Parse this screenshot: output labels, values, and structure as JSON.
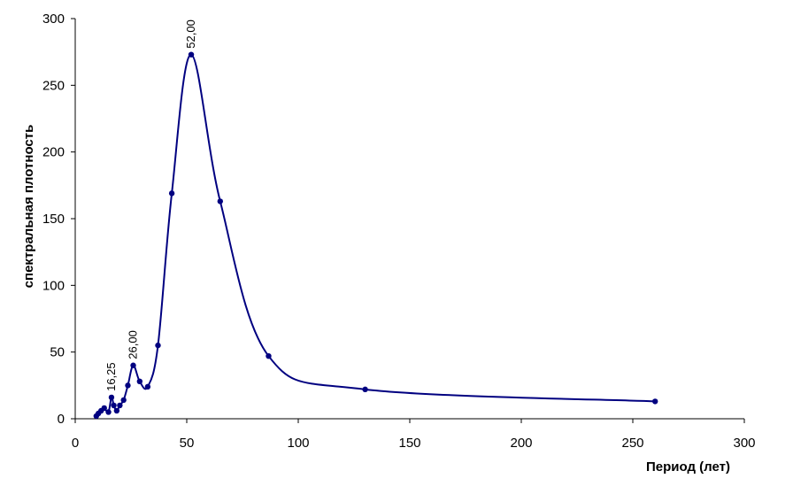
{
  "chart_data": {
    "type": "line",
    "title": "",
    "xlabel": "Период (лет)",
    "ylabel": "спектральная плотность",
    "xlim": [
      0,
      300
    ],
    "ylim": [
      0,
      300
    ],
    "x_ticks": [
      "0",
      "50",
      "100",
      "150",
      "200",
      "250",
      "300"
    ],
    "y_ticks": [
      "0",
      "50",
      "100",
      "150",
      "200",
      "250",
      "300"
    ],
    "grid": false,
    "legend": "none",
    "smooth": true,
    "series": [
      {
        "color": "#000080",
        "marker": "circle",
        "points": [
          {
            "x": 9.45,
            "y": 2
          },
          {
            "x": 10.4,
            "y": 4
          },
          {
            "x": 11.6,
            "y": 6
          },
          {
            "x": 13.0,
            "y": 8
          },
          {
            "x": 14.9,
            "y": 5
          },
          {
            "x": 16.25,
            "y": 16
          },
          {
            "x": 17.3,
            "y": 10
          },
          {
            "x": 18.6,
            "y": 6
          },
          {
            "x": 20.0,
            "y": 10
          },
          {
            "x": 21.7,
            "y": 14
          },
          {
            "x": 23.6,
            "y": 25
          },
          {
            "x": 26.0,
            "y": 40
          },
          {
            "x": 28.9,
            "y": 28
          },
          {
            "x": 32.5,
            "y": 24
          },
          {
            "x": 37.1,
            "y": 55
          },
          {
            "x": 43.3,
            "y": 169
          },
          {
            "x": 52.0,
            "y": 273
          },
          {
            "x": 65.0,
            "y": 163
          },
          {
            "x": 86.7,
            "y": 47
          },
          {
            "x": 130.0,
            "y": 22
          },
          {
            "x": 260.0,
            "y": 13
          }
        ]
      }
    ],
    "annotations": [
      {
        "x": 16.25,
        "y": 16,
        "text": "16,25"
      },
      {
        "x": 26.0,
        "y": 40,
        "text": "26,00"
      },
      {
        "x": 52.0,
        "y": 273,
        "text": "52,00"
      }
    ]
  }
}
